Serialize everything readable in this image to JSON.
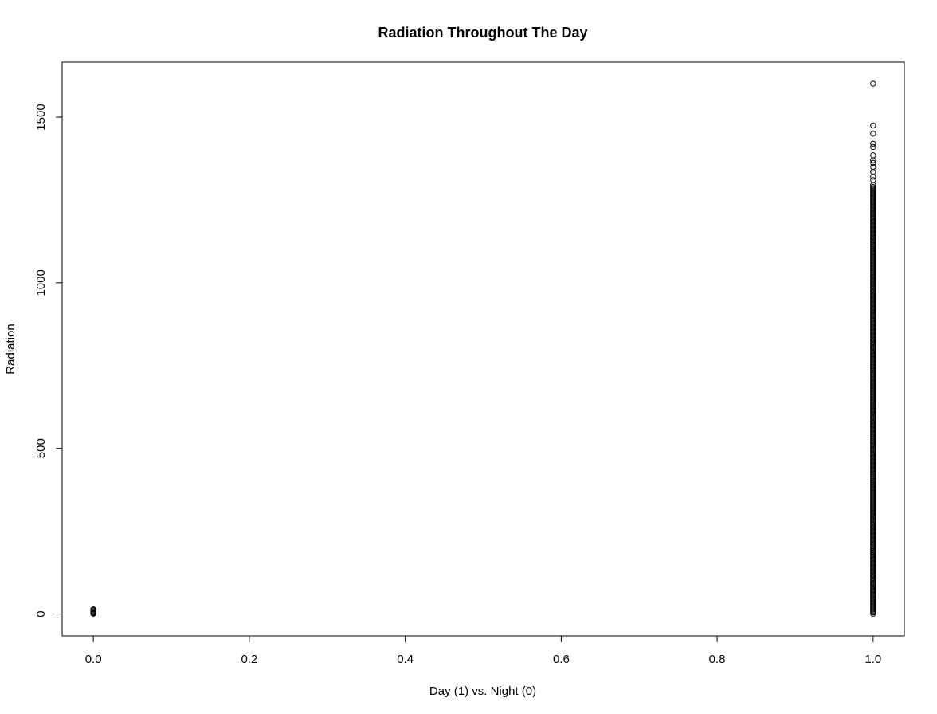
{
  "chart_data": {
    "type": "scatter",
    "title": "Radiation Throughout The Day",
    "xlabel": "Day (1) vs. Night (0)",
    "ylabel": "Radiation",
    "xlim": [
      -0.04,
      1.04
    ],
    "ylim": [
      -66,
      1666
    ],
    "x_ticks": [
      {
        "value": 0.0,
        "label": "0.0"
      },
      {
        "value": 0.2,
        "label": "0.2"
      },
      {
        "value": 0.4,
        "label": "0.4"
      },
      {
        "value": 0.6,
        "label": "0.6"
      },
      {
        "value": 0.8,
        "label": "0.8"
      },
      {
        "value": 1.0,
        "label": "1.0"
      }
    ],
    "y_ticks": [
      {
        "value": 0,
        "label": "0"
      },
      {
        "value": 500,
        "label": "500"
      },
      {
        "value": 1000,
        "label": "1000"
      },
      {
        "value": 1500,
        "label": "1500"
      }
    ],
    "grid": false,
    "marker": "open-circle",
    "point_color": "#000000",
    "series": [
      {
        "x": 0,
        "y": [
          1,
          3,
          5,
          8,
          11,
          14
        ]
      },
      {
        "x": 1,
        "y_dense_range": [
          1,
          1290
        ],
        "y": [
          1295,
          1310,
          1320,
          1335,
          1350,
          1362,
          1370,
          1385,
          1410,
          1420,
          1450,
          1475,
          1601
        ]
      }
    ]
  }
}
